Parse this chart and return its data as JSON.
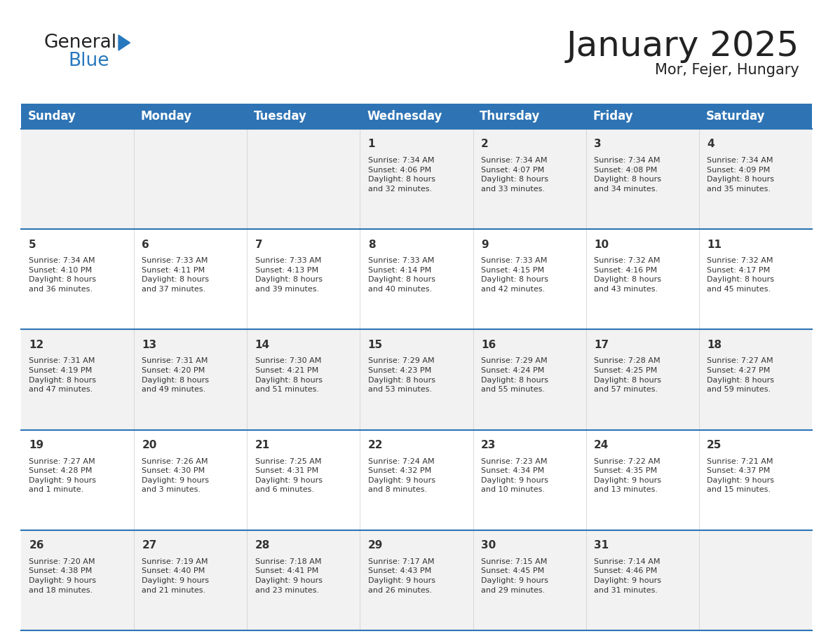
{
  "title": "January 2025",
  "subtitle": "Mor, Fejer, Hungary",
  "days_of_week": [
    "Sunday",
    "Monday",
    "Tuesday",
    "Wednesday",
    "Thursday",
    "Friday",
    "Saturday"
  ],
  "header_bg": "#2E74B5",
  "header_text_color": "#FFFFFF",
  "cell_bg_odd": "#F2F2F2",
  "cell_bg_even": "#FFFFFF",
  "row_line_color": "#2E74B5",
  "text_color": "#333333",
  "calendar_data": [
    [
      {
        "day": "",
        "info": ""
      },
      {
        "day": "",
        "info": ""
      },
      {
        "day": "",
        "info": ""
      },
      {
        "day": "1",
        "info": "Sunrise: 7:34 AM\nSunset: 4:06 PM\nDaylight: 8 hours\nand 32 minutes."
      },
      {
        "day": "2",
        "info": "Sunrise: 7:34 AM\nSunset: 4:07 PM\nDaylight: 8 hours\nand 33 minutes."
      },
      {
        "day": "3",
        "info": "Sunrise: 7:34 AM\nSunset: 4:08 PM\nDaylight: 8 hours\nand 34 minutes."
      },
      {
        "day": "4",
        "info": "Sunrise: 7:34 AM\nSunset: 4:09 PM\nDaylight: 8 hours\nand 35 minutes."
      }
    ],
    [
      {
        "day": "5",
        "info": "Sunrise: 7:34 AM\nSunset: 4:10 PM\nDaylight: 8 hours\nand 36 minutes."
      },
      {
        "day": "6",
        "info": "Sunrise: 7:33 AM\nSunset: 4:11 PM\nDaylight: 8 hours\nand 37 minutes."
      },
      {
        "day": "7",
        "info": "Sunrise: 7:33 AM\nSunset: 4:13 PM\nDaylight: 8 hours\nand 39 minutes."
      },
      {
        "day": "8",
        "info": "Sunrise: 7:33 AM\nSunset: 4:14 PM\nDaylight: 8 hours\nand 40 minutes."
      },
      {
        "day": "9",
        "info": "Sunrise: 7:33 AM\nSunset: 4:15 PM\nDaylight: 8 hours\nand 42 minutes."
      },
      {
        "day": "10",
        "info": "Sunrise: 7:32 AM\nSunset: 4:16 PM\nDaylight: 8 hours\nand 43 minutes."
      },
      {
        "day": "11",
        "info": "Sunrise: 7:32 AM\nSunset: 4:17 PM\nDaylight: 8 hours\nand 45 minutes."
      }
    ],
    [
      {
        "day": "12",
        "info": "Sunrise: 7:31 AM\nSunset: 4:19 PM\nDaylight: 8 hours\nand 47 minutes."
      },
      {
        "day": "13",
        "info": "Sunrise: 7:31 AM\nSunset: 4:20 PM\nDaylight: 8 hours\nand 49 minutes."
      },
      {
        "day": "14",
        "info": "Sunrise: 7:30 AM\nSunset: 4:21 PM\nDaylight: 8 hours\nand 51 minutes."
      },
      {
        "day": "15",
        "info": "Sunrise: 7:29 AM\nSunset: 4:23 PM\nDaylight: 8 hours\nand 53 minutes."
      },
      {
        "day": "16",
        "info": "Sunrise: 7:29 AM\nSunset: 4:24 PM\nDaylight: 8 hours\nand 55 minutes."
      },
      {
        "day": "17",
        "info": "Sunrise: 7:28 AM\nSunset: 4:25 PM\nDaylight: 8 hours\nand 57 minutes."
      },
      {
        "day": "18",
        "info": "Sunrise: 7:27 AM\nSunset: 4:27 PM\nDaylight: 8 hours\nand 59 minutes."
      }
    ],
    [
      {
        "day": "19",
        "info": "Sunrise: 7:27 AM\nSunset: 4:28 PM\nDaylight: 9 hours\nand 1 minute."
      },
      {
        "day": "20",
        "info": "Sunrise: 7:26 AM\nSunset: 4:30 PM\nDaylight: 9 hours\nand 3 minutes."
      },
      {
        "day": "21",
        "info": "Sunrise: 7:25 AM\nSunset: 4:31 PM\nDaylight: 9 hours\nand 6 minutes."
      },
      {
        "day": "22",
        "info": "Sunrise: 7:24 AM\nSunset: 4:32 PM\nDaylight: 9 hours\nand 8 minutes."
      },
      {
        "day": "23",
        "info": "Sunrise: 7:23 AM\nSunset: 4:34 PM\nDaylight: 9 hours\nand 10 minutes."
      },
      {
        "day": "24",
        "info": "Sunrise: 7:22 AM\nSunset: 4:35 PM\nDaylight: 9 hours\nand 13 minutes."
      },
      {
        "day": "25",
        "info": "Sunrise: 7:21 AM\nSunset: 4:37 PM\nDaylight: 9 hours\nand 15 minutes."
      }
    ],
    [
      {
        "day": "26",
        "info": "Sunrise: 7:20 AM\nSunset: 4:38 PM\nDaylight: 9 hours\nand 18 minutes."
      },
      {
        "day": "27",
        "info": "Sunrise: 7:19 AM\nSunset: 4:40 PM\nDaylight: 9 hours\nand 21 minutes."
      },
      {
        "day": "28",
        "info": "Sunrise: 7:18 AM\nSunset: 4:41 PM\nDaylight: 9 hours\nand 23 minutes."
      },
      {
        "day": "29",
        "info": "Sunrise: 7:17 AM\nSunset: 4:43 PM\nDaylight: 9 hours\nand 26 minutes."
      },
      {
        "day": "30",
        "info": "Sunrise: 7:15 AM\nSunset: 4:45 PM\nDaylight: 9 hours\nand 29 minutes."
      },
      {
        "day": "31",
        "info": "Sunrise: 7:14 AM\nSunset: 4:46 PM\nDaylight: 9 hours\nand 31 minutes."
      },
      {
        "day": "",
        "info": ""
      }
    ]
  ],
  "logo_general_color": "#222222",
  "logo_blue_color": "#2878BE",
  "title_fontsize": 36,
  "subtitle_fontsize": 15,
  "header_fontsize": 12,
  "day_num_fontsize": 11,
  "info_fontsize": 8.0,
  "fig_width": 11.88,
  "fig_height": 9.18,
  "dpi": 100
}
